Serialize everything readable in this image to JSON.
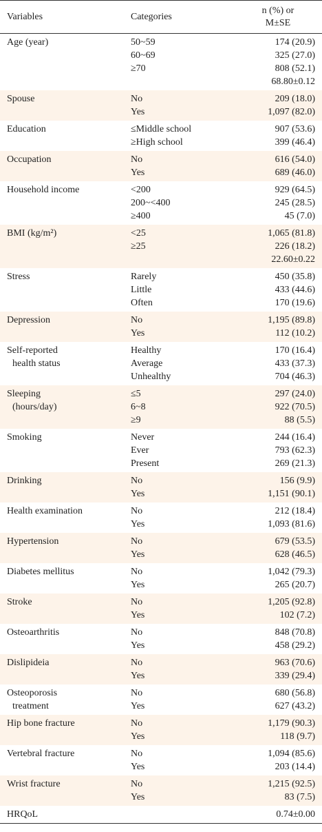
{
  "header": {
    "variables": "Variables",
    "categories": "Categories",
    "values": [
      "n (%) or",
      "M±SE"
    ]
  },
  "groups": [
    {
      "variable": [
        "Age (year)"
      ],
      "categories": [
        "50~59",
        "60~69",
        "≥70",
        null
      ],
      "values": [
        "174 (20.9)",
        "325 (27.0)",
        "808 (52.1)",
        "68.80±0.12"
      ]
    },
    {
      "variable": [
        "Spouse"
      ],
      "categories": [
        "No",
        "Yes"
      ],
      "values": [
        "209 (18.0)",
        "1,097 (82.0)"
      ]
    },
    {
      "variable": [
        "Education"
      ],
      "categories": [
        "≤Middle school",
        "≥High school"
      ],
      "values": [
        "907 (53.6)",
        "399 (46.4)"
      ]
    },
    {
      "variable": [
        "Occupation"
      ],
      "categories": [
        "No",
        "Yes"
      ],
      "values": [
        "616 (54.0)",
        "689 (46.0)"
      ]
    },
    {
      "variable": [
        "Household income"
      ],
      "categories": [
        "<200",
        "200~<400",
        "≥400"
      ],
      "values": [
        "929 (64.5)",
        "245 (28.5)",
        "45 (7.0)"
      ]
    },
    {
      "variable": [
        "BMI (kg/m²)"
      ],
      "categories": [
        "<25",
        "≥25",
        null
      ],
      "values": [
        "1,065 (81.8)",
        "226 (18.2)",
        "22.60±0.22"
      ]
    },
    {
      "variable": [
        "Stress"
      ],
      "categories": [
        "Rarely",
        "Little",
        "Often"
      ],
      "values": [
        "450 (35.8)",
        "433 (44.6)",
        "170 (19.6)"
      ]
    },
    {
      "variable": [
        "Depression"
      ],
      "categories": [
        "No",
        "Yes"
      ],
      "values": [
        "1,195 (89.8)",
        "112 (10.2)"
      ]
    },
    {
      "variable": [
        "Self-reported",
        "health status"
      ],
      "categories": [
        "Healthy",
        "Average",
        "Unhealthy"
      ],
      "values": [
        "170 (16.4)",
        "433 (37.3)",
        "704 (46.3)"
      ]
    },
    {
      "variable": [
        "Sleeping",
        "(hours/day)"
      ],
      "categories": [
        "≤5",
        "6~8",
        "≥9"
      ],
      "values": [
        "297 (24.0)",
        "922 (70.5)",
        "88 (5.5)"
      ]
    },
    {
      "variable": [
        "Smoking"
      ],
      "categories": [
        "Never",
        "Ever",
        "Present"
      ],
      "values": [
        "244 (16.4)",
        "793 (62.3)",
        "269 (21.3)"
      ]
    },
    {
      "variable": [
        "Drinking"
      ],
      "categories": [
        "No",
        "Yes"
      ],
      "values": [
        "156 (9.9)",
        "1,151 (90.1)"
      ]
    },
    {
      "variable": [
        "Health examination"
      ],
      "categories": [
        "No",
        "Yes"
      ],
      "values": [
        "212 (18.4)",
        "1,093 (81.6)"
      ]
    },
    {
      "variable": [
        "Hypertension"
      ],
      "categories": [
        "No",
        "Yes"
      ],
      "values": [
        "679 (53.5)",
        "628 (46.5)"
      ]
    },
    {
      "variable": [
        "Diabetes mellitus"
      ],
      "categories": [
        "No",
        "Yes"
      ],
      "values": [
        "1,042 (79.3)",
        "265 (20.7)"
      ]
    },
    {
      "variable": [
        "Stroke"
      ],
      "categories": [
        "No",
        "Yes"
      ],
      "values": [
        "1,205 (92.8)",
        "102 (7.2)"
      ]
    },
    {
      "variable": [
        "Osteoarthritis"
      ],
      "categories": [
        "No",
        "Yes"
      ],
      "values": [
        "848 (70.8)",
        "458 (29.2)"
      ]
    },
    {
      "variable": [
        "Dislipideia"
      ],
      "categories": [
        "No",
        "Yes"
      ],
      "values": [
        "963 (70.6)",
        "339 (29.4)"
      ]
    },
    {
      "variable": [
        "Osteoporosis",
        "treatment"
      ],
      "categories": [
        "No",
        "Yes"
      ],
      "values": [
        "680 (56.8)",
        "627 (43.2)"
      ]
    },
    {
      "variable": [
        "Hip bone fracture"
      ],
      "categories": [
        "No",
        "Yes"
      ],
      "values": [
        "1,179 (90.3)",
        "118 (9.7)"
      ]
    },
    {
      "variable": [
        "Vertebral fracture"
      ],
      "categories": [
        "No",
        "Yes"
      ],
      "values": [
        "1,094 (85.6)",
        "203 (14.4)"
      ]
    },
    {
      "variable": [
        "Wrist fracture"
      ],
      "categories": [
        "No",
        "Yes"
      ],
      "values": [
        "1,215 (92.5)",
        "83 (7.5)"
      ]
    },
    {
      "variable": [
        "HRQoL"
      ],
      "categories": [
        null
      ],
      "values": [
        "0.74±0.00"
      ]
    }
  ]
}
